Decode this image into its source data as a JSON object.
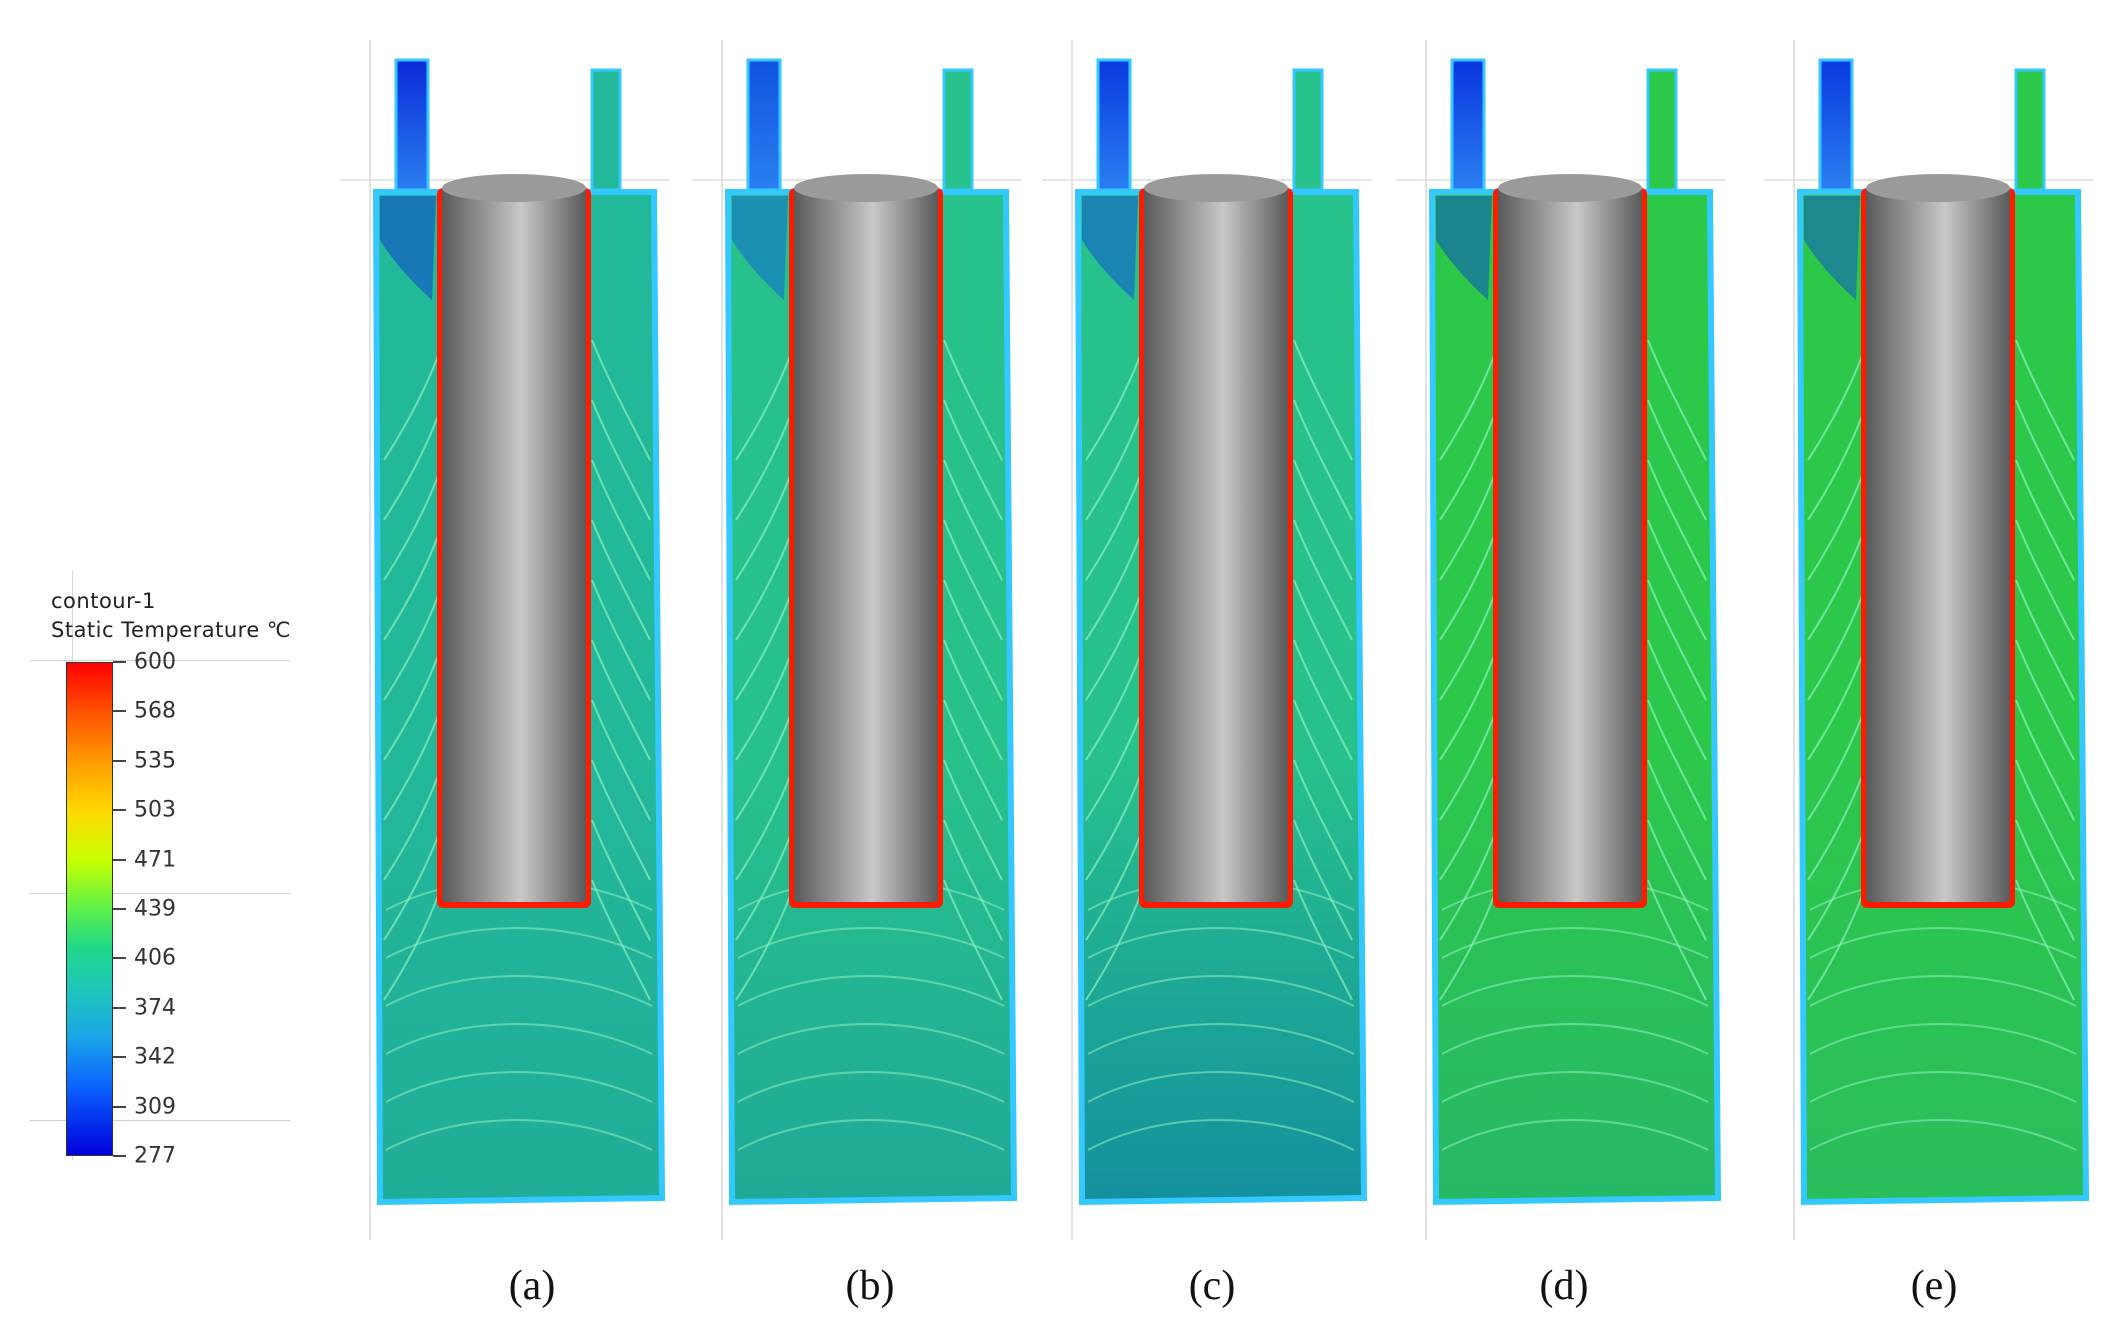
{
  "legend": {
    "title_line1": "contour-1",
    "title_line2": "Static Temperature ℃",
    "ticks": [
      "600",
      "568",
      "535",
      "503",
      "471",
      "439",
      "406",
      "374",
      "342",
      "309",
      "277"
    ]
  },
  "panels": [
    {
      "caption": "(a)",
      "fluid_color": "#22b89a",
      "bottom_color": "#20ad98",
      "inlet_color": "#0a2ad8",
      "wall_hot": true
    },
    {
      "caption": "(b)",
      "fluid_color": "#27c28c",
      "bottom_color": "#1fa997",
      "inlet_color": "#1054e0",
      "wall_hot": true
    },
    {
      "caption": "(c)",
      "fluid_color": "#27c28c",
      "bottom_color": "#14909e",
      "inlet_color": "#0a3ae0",
      "wall_hot": true
    },
    {
      "caption": "(d)",
      "fluid_color": "#2cc84a",
      "bottom_color": "#27b866",
      "inlet_color": "#0a34e0",
      "wall_hot": true
    },
    {
      "caption": "(e)",
      "fluid_color": "#2cc84a",
      "bottom_color": "#29bd5c",
      "inlet_color": "#0a3ae0",
      "wall_hot": true
    }
  ],
  "colors": {
    "hot": "#ff1a00",
    "cylinder_dark": "#5a5a5a",
    "cylinder_light": "#c8c8c8",
    "edge": "#35c8ff",
    "isoline": "#8ff0c0"
  }
}
